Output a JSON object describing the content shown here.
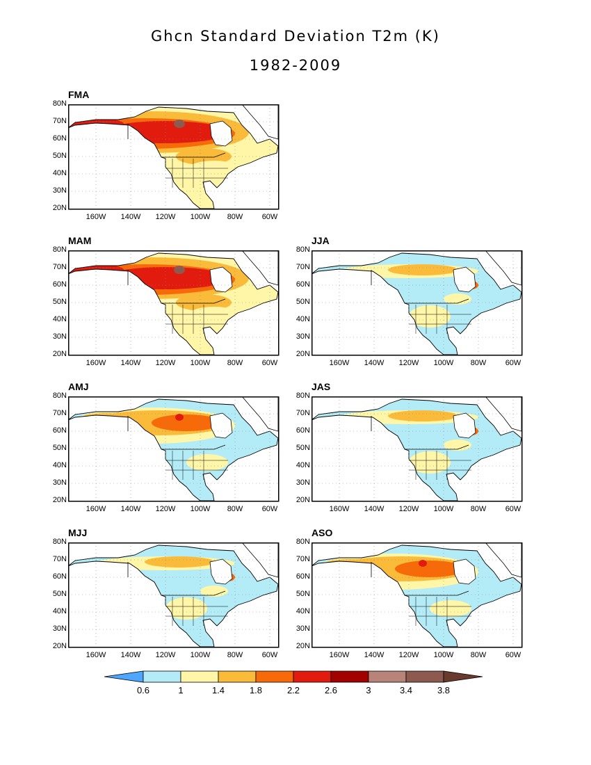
{
  "title": {
    "line1": "Ghcn Standard Deviation T2m (K)",
    "line2": "1982-2009"
  },
  "axes": {
    "lat_labels": [
      "80N",
      "70N",
      "60N",
      "50N",
      "40N",
      "30N",
      "20N"
    ],
    "lon_labels": [
      "160W",
      "140W",
      "120W",
      "100W",
      "80W",
      "60W"
    ]
  },
  "panels": [
    {
      "id": "fma",
      "label": "FMA",
      "pattern": "warm"
    },
    {
      "id": "mam",
      "label": "MAM",
      "pattern": "warm"
    },
    {
      "id": "jja",
      "label": "JJA",
      "pattern": "cool"
    },
    {
      "id": "amj",
      "label": "AMJ",
      "pattern": "mid"
    },
    {
      "id": "jas",
      "label": "JAS",
      "pattern": "cool"
    },
    {
      "id": "mjj",
      "label": "MJJ",
      "pattern": "cool"
    },
    {
      "id": "aso",
      "label": "ASO",
      "pattern": "mid"
    }
  ],
  "colorbar": {
    "ticks": [
      "0.6",
      "1",
      "1.4",
      "1.8",
      "2.2",
      "2.6",
      "3",
      "3.4",
      "3.8"
    ],
    "colors": [
      "#4da6ff",
      "#b3ecf7",
      "#fff6a8",
      "#fbbb3a",
      "#f66a0a",
      "#e11c0f",
      "#a30000",
      "#b8847a",
      "#8c5a4e",
      "#6b3a2e"
    ]
  },
  "colors": {
    "land_low": "#b3ecf7",
    "land_mid": "#fff6a8",
    "land_orange": "#fbbb3a",
    "land_darkorange": "#f66a0a",
    "land_red": "#e11c0f",
    "land_brown": "#8c5a4e"
  }
}
